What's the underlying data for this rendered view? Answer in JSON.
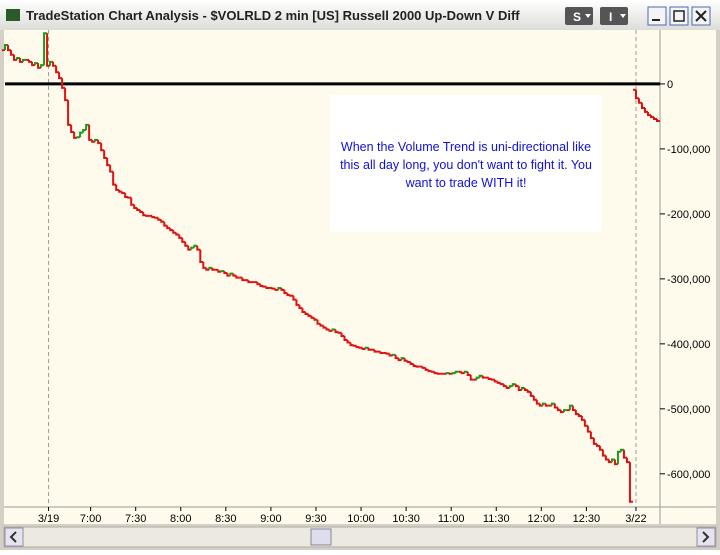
{
  "window": {
    "title": "TradeStation Chart Analysis - $VOLRLD 2 min [US] Russell 2000 Up-Down V Diff",
    "buttons": [
      "S",
      "I"
    ]
  },
  "chart_data": {
    "type": "step",
    "annotation": [
      "When the Volume Trend is uni-directional like",
      "this all day long, you don't want to fight it. You",
      "want to trade WITH it!"
    ],
    "up_color": "#1a9a1a",
    "down_color": "#e01010",
    "zero_line": true,
    "session_breaks": [
      32,
      423
    ],
    "xlim": [
      3,
      439
    ],
    "ylim": [
      -648000,
      83000
    ],
    "xticks": [
      {
        "value": 32,
        "label": "3/19"
      },
      {
        "value": 60,
        "label": "7:00"
      },
      {
        "value": 90,
        "label": "7:30"
      },
      {
        "value": 120,
        "label": "8:00"
      },
      {
        "value": 150,
        "label": "8:30"
      },
      {
        "value": 180,
        "label": "9:00"
      },
      {
        "value": 210,
        "label": "9:30"
      },
      {
        "value": 240,
        "label": "10:00"
      },
      {
        "value": 270,
        "label": "10:30"
      },
      {
        "value": 300,
        "label": "11:00"
      },
      {
        "value": 330,
        "label": "11:30"
      },
      {
        "value": 360,
        "label": "12:00"
      },
      {
        "value": 390,
        "label": "12:30"
      },
      {
        "value": 423,
        "label": "3/22"
      }
    ],
    "yticks": [
      0,
      {
        "value": -100000,
        "label": "-100,000"
      },
      {
        "value": -200000,
        "label": "-200,000"
      },
      {
        "value": -300000,
        "label": "-300,000"
      },
      {
        "value": -400000,
        "label": "-400,000"
      },
      {
        "value": -500000,
        "label": "-500,000"
      },
      {
        "value": -600000,
        "label": "-600,000"
      }
    ],
    "x": [
      2,
      4,
      6,
      8,
      10,
      12,
      14,
      16,
      18,
      20,
      22,
      24,
      26,
      28,
      30,
      32,
      34,
      36,
      38,
      40,
      42,
      44,
      46,
      48,
      50,
      52,
      54,
      56,
      58,
      60,
      62,
      64,
      66,
      68,
      70,
      72,
      74,
      76,
      78,
      80,
      82,
      84,
      86,
      88,
      90,
      92,
      94,
      96,
      98,
      100,
      102,
      104,
      106,
      108,
      110,
      112,
      114,
      116,
      118,
      120,
      122,
      124,
      126,
      128,
      130,
      132,
      134,
      136,
      138,
      140,
      142,
      144,
      146,
      148,
      150,
      152,
      154,
      156,
      158,
      160,
      162,
      164,
      166,
      168,
      170,
      172,
      174,
      176,
      178,
      180,
      182,
      184,
      186,
      188,
      190,
      192,
      194,
      196,
      198,
      200,
      202,
      204,
      206,
      208,
      210,
      212,
      214,
      216,
      218,
      220,
      222,
      224,
      226,
      228,
      230,
      232,
      234,
      236,
      238,
      240,
      242,
      244,
      246,
      248,
      250,
      252,
      254,
      256,
      258,
      260,
      262,
      264,
      266,
      268,
      270,
      272,
      274,
      276,
      278,
      280,
      282,
      284,
      286,
      288,
      290,
      292,
      294,
      296,
      298,
      300,
      302,
      304,
      306,
      308,
      310,
      312,
      314,
      316,
      318,
      320,
      322,
      324,
      326,
      328,
      330,
      332,
      334,
      336,
      338,
      340,
      342,
      344,
      346,
      348,
      350,
      352,
      354,
      356,
      358,
      360,
      362,
      364,
      366,
      368,
      370,
      372,
      374,
      376,
      378,
      380,
      382,
      384,
      386,
      388,
      390,
      392,
      394,
      396,
      398,
      400,
      402,
      404,
      406,
      408,
      410,
      412,
      414,
      416,
      418,
      420,
      421,
      422,
      424,
      426,
      428,
      430,
      432,
      434,
      436,
      438
    ],
    "values": [
      52000,
      60000,
      52000,
      45000,
      37000,
      40000,
      34000,
      37000,
      37000,
      34000,
      29000,
      32000,
      25000,
      29000,
      78000,
      28000,
      34000,
      28000,
      18000,
      9000,
      -6000,
      -25000,
      -63000,
      -74000,
      -83000,
      -82000,
      -75000,
      -71000,
      -63000,
      -86000,
      -89000,
      -86000,
      -91000,
      -102000,
      -114000,
      -125000,
      -135000,
      -155000,
      -163000,
      -166000,
      -168000,
      -174000,
      -175000,
      -186000,
      -191000,
      -194000,
      -197000,
      -202000,
      -203000,
      -203000,
      -205000,
      -206000,
      -209000,
      -212000,
      -218000,
      -222000,
      -225000,
      -229000,
      -232000,
      -237000,
      -243000,
      -249000,
      -255000,
      -252000,
      -249000,
      -255000,
      -274000,
      -283000,
      -286000,
      -283000,
      -286000,
      -286000,
      -289000,
      -288000,
      -291000,
      -295000,
      -292000,
      -295000,
      -298000,
      -298000,
      -302000,
      -302000,
      -305000,
      -305000,
      -305000,
      -308000,
      -311000,
      -312000,
      -314000,
      -314000,
      -315000,
      -317000,
      -314000,
      -317000,
      -322000,
      -325000,
      -326000,
      -332000,
      -340000,
      -345000,
      -351000,
      -354000,
      -357000,
      -360000,
      -363000,
      -369000,
      -372000,
      -375000,
      -378000,
      -380000,
      -378000,
      -382000,
      -383000,
      -388000,
      -394000,
      -398000,
      -402000,
      -403000,
      -405000,
      -406000,
      -408000,
      -406000,
      -409000,
      -409000,
      -412000,
      -412000,
      -414000,
      -414000,
      -415000,
      -418000,
      -417000,
      -422000,
      -425000,
      -422000,
      -426000,
      -428000,
      -431000,
      -434000,
      -435000,
      -435000,
      -437000,
      -440000,
      -442000,
      -443000,
      -445000,
      -446000,
      -446000,
      -446000,
      -445000,
      -446000,
      -445000,
      -443000,
      -443000,
      -445000,
      -443000,
      -448000,
      -455000,
      -455000,
      -452000,
      -449000,
      -452000,
      -452000,
      -454000,
      -455000,
      -458000,
      -460000,
      -462000,
      -465000,
      -468000,
      -465000,
      -462000,
      -465000,
      -471000,
      -468000,
      -471000,
      -474000,
      -480000,
      -486000,
      -492000,
      -495000,
      -492000,
      -495000,
      -495000,
      -492000,
      -498000,
      -502000,
      -505000,
      -502000,
      -502000,
      -495000,
      -502000,
      -508000,
      -511000,
      -517000,
      -526000,
      -535000,
      -545000,
      -554000,
      -557000,
      -563000,
      -572000,
      -578000,
      -582000,
      -578000,
      -585000,
      -566000,
      -563000,
      -575000,
      -582000,
      -643000,
      null,
      -9000,
      -22000,
      -29000,
      -37000,
      -43000,
      -48000,
      -51000,
      -54000,
      -57000
    ]
  }
}
